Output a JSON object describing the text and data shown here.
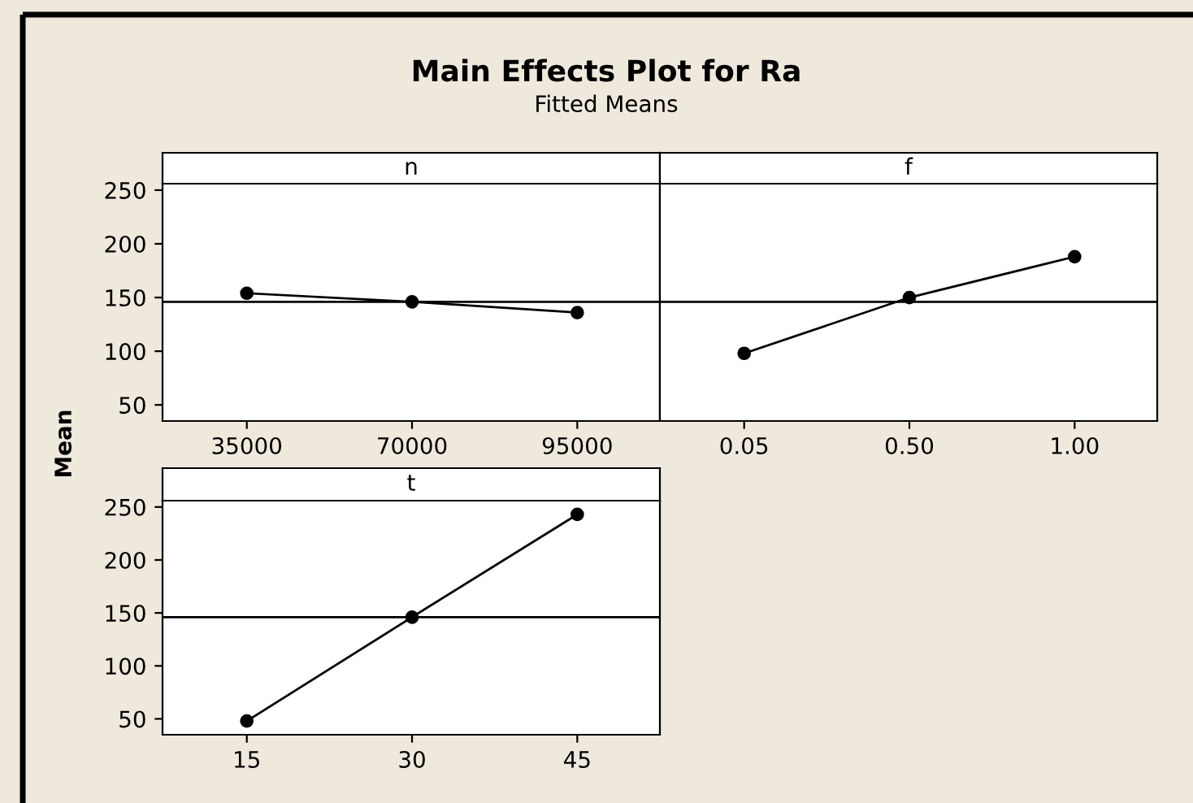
{
  "chart_data": [
    {
      "type": "line",
      "title": "n",
      "ylabel": "Mean",
      "annotations": [
        "Main Effects Plot for Ra",
        "Fitted Means"
      ],
      "categories": [
        "35000",
        "70000",
        "95000"
      ],
      "values": [
        154,
        146,
        136
      ],
      "color": "#000000",
      "marker": "circle",
      "ylim": [
        35,
        256
      ],
      "yticks": [
        50,
        100,
        150,
        200,
        250
      ],
      "ref_lines": [
        {
          "axis": "y",
          "value": 146,
          "color": "#000000"
        }
      ],
      "grid": false
    },
    {
      "type": "line",
      "title": "f",
      "categories": [
        "0.05",
        "0.50",
        "1.00"
      ],
      "values": [
        98,
        150,
        188
      ],
      "color": "#000000",
      "marker": "circle",
      "ylim": [
        35,
        256
      ],
      "yticks": [
        50,
        100,
        150,
        200,
        250
      ],
      "tick_labels": "x",
      "ref_lines": [
        {
          "axis": "y",
          "value": 146,
          "color": "#000000"
        }
      ],
      "grid": false
    },
    {
      "type": "line",
      "title": "t",
      "categories": [
        "15",
        "30",
        "45"
      ],
      "values": [
        48,
        146,
        243
      ],
      "color": "#000000",
      "marker": "circle",
      "ylim": [
        35,
        256
      ],
      "yticks": [
        50,
        100,
        150,
        200,
        250
      ],
      "ref_lines": [
        {
          "axis": "y",
          "value": 146,
          "color": "#000000"
        }
      ],
      "grid": false
    }
  ]
}
